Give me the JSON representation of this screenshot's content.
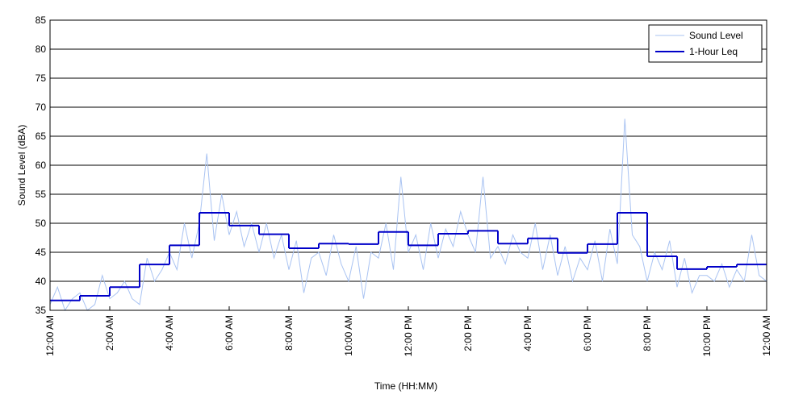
{
  "chart_data": {
    "type": "line",
    "xlabel": "Time (HH:MM)",
    "ylabel": "Sound Level (dBA)",
    "xlim": [
      0,
      24
    ],
    "ylim": [
      35,
      85
    ],
    "xticks": [
      {
        "value": 0,
        "label": "12:00 AM"
      },
      {
        "value": 2,
        "label": "2:00 AM"
      },
      {
        "value": 4,
        "label": "4:00 AM"
      },
      {
        "value": 6,
        "label": "6:00 AM"
      },
      {
        "value": 8,
        "label": "8:00 AM"
      },
      {
        "value": 10,
        "label": "10:00 AM"
      },
      {
        "value": 12,
        "label": "12:00 PM"
      },
      {
        "value": 14,
        "label": "2:00 PM"
      },
      {
        "value": 16,
        "label": "4:00 PM"
      },
      {
        "value": 18,
        "label": "6:00 PM"
      },
      {
        "value": 20,
        "label": "8:00 PM"
      },
      {
        "value": 22,
        "label": "10:00 PM"
      },
      {
        "value": 24,
        "label": "12:00 AM"
      }
    ],
    "yticks": [
      35,
      40,
      45,
      50,
      55,
      60,
      65,
      70,
      75,
      80,
      85
    ],
    "grid": true,
    "legend": "upper right",
    "series": [
      {
        "name": "Sound Level",
        "color": "#a9c3f2",
        "x": [
          0,
          0.25,
          0.5,
          0.75,
          1,
          1.25,
          1.5,
          1.75,
          2,
          2.25,
          2.5,
          2.75,
          3,
          3.25,
          3.5,
          3.75,
          4,
          4.25,
          4.5,
          4.75,
          5,
          5.25,
          5.5,
          5.75,
          6,
          6.25,
          6.5,
          6.75,
          7,
          7.25,
          7.5,
          7.75,
          8,
          8.25,
          8.5,
          8.75,
          9,
          9.25,
          9.5,
          9.75,
          10,
          10.25,
          10.5,
          10.75,
          11,
          11.25,
          11.5,
          11.75,
          12,
          12.25,
          12.5,
          12.75,
          13,
          13.25,
          13.5,
          13.75,
          14,
          14.25,
          14.5,
          14.75,
          15,
          15.25,
          15.5,
          15.75,
          16,
          16.25,
          16.5,
          16.75,
          17,
          17.25,
          17.5,
          17.75,
          18,
          18.25,
          18.5,
          18.75,
          19,
          19.25,
          19.5,
          19.75,
          20,
          20.25,
          20.5,
          20.75,
          21,
          21.25,
          21.5,
          21.75,
          22,
          22.25,
          22.5,
          22.75,
          23,
          23.25,
          23.5,
          23.75,
          24
        ],
        "values": [
          36,
          39,
          35,
          37,
          38,
          35,
          36,
          41,
          37,
          38,
          40,
          37,
          36,
          44,
          40,
          42,
          45,
          42,
          50,
          44,
          50,
          62,
          47,
          55,
          48,
          52,
          46,
          50,
          45,
          50,
          44,
          48,
          42,
          47,
          38,
          44,
          45,
          41,
          48,
          43,
          40,
          46,
          37,
          45,
          44,
          50,
          42,
          58,
          45,
          48,
          42,
          50,
          44,
          49,
          46,
          52,
          48,
          45,
          58,
          44,
          46,
          43,
          48,
          45,
          44,
          50,
          42,
          48,
          41,
          46,
          40,
          44,
          42,
          47,
          40,
          49,
          43,
          68,
          48,
          46,
          40,
          45,
          42,
          47,
          39,
          44,
          38,
          41,
          41,
          40,
          43,
          39,
          42,
          40,
          48,
          41,
          40
        ]
      },
      {
        "name": "1-Hour Leq",
        "color": "#0000c8",
        "step": "post",
        "x": [
          0,
          1,
          2,
          3,
          4,
          5,
          6,
          7,
          8,
          9,
          10,
          11,
          12,
          13,
          14,
          15,
          16,
          17,
          18,
          19,
          20,
          21,
          22,
          23
        ],
        "values": [
          36.7,
          37.5,
          39.0,
          42.9,
          46.2,
          51.8,
          49.6,
          48.1,
          45.7,
          46.5,
          46.4,
          48.5,
          46.2,
          48.2,
          48.7,
          46.5,
          47.4,
          44.9,
          46.4,
          51.8,
          44.3,
          42.1,
          42.5,
          42.9
        ]
      }
    ]
  }
}
